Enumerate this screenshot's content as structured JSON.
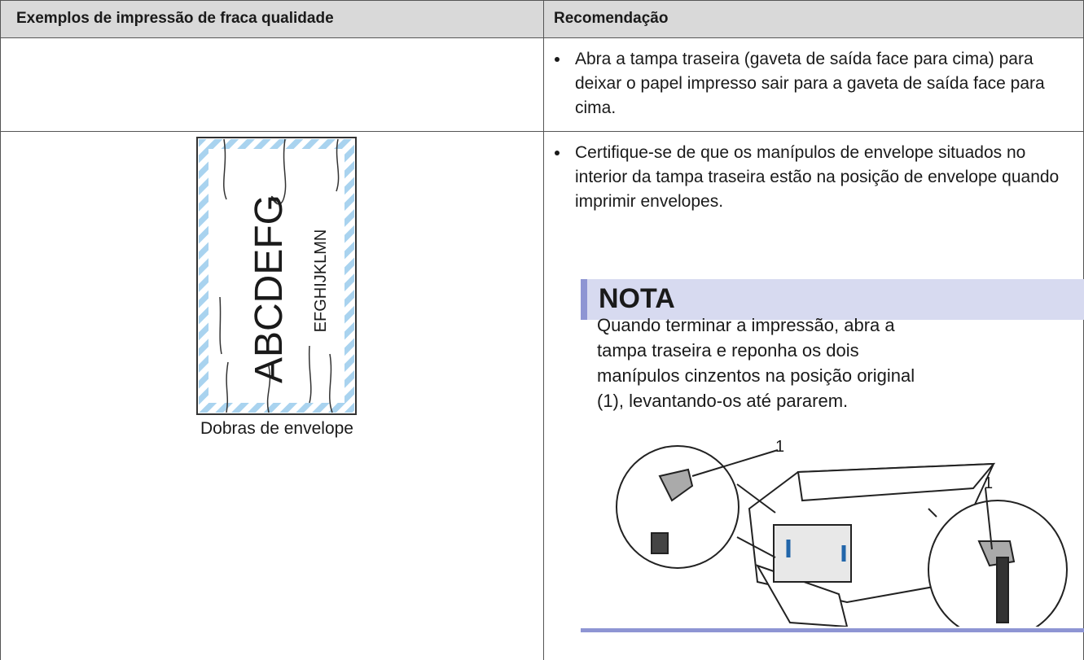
{
  "header": {
    "col1": "Exemplos de impressão de fraca qualidade",
    "col2": "Recomendação"
  },
  "rows": [
    {
      "recommendation": "Abra a tampa traseira (gaveta de saída face para cima) para deixar o papel impresso sair para a gaveta de saída face para cima."
    },
    {
      "example": {
        "big_text": "ABCDEFG",
        "small_text": "EFGHIJKLMN",
        "caption": "Dobras de envelope"
      },
      "recommendation": "Certifique-se de que os manípulos de envelope situados no interior da tampa traseira estão na posição de envelope quando imprimir envelopes.",
      "note": {
        "title": "NOTA",
        "text": "Quando terminar a impressão, abra a tampa traseira e reponha os dois manípulos cinzentos na posição original (1), levantando-os até pararem.",
        "callouts": [
          "1",
          "1"
        ]
      }
    }
  ]
}
